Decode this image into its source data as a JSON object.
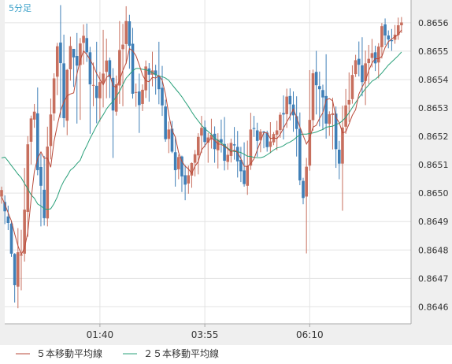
{
  "chart_data": {
    "type": "candlestick",
    "title": "5分足",
    "y_ticks": [
      "0.8656",
      "0.8655",
      "0.8654",
      "0.8653",
      "0.8652",
      "0.8651",
      "0.8650",
      "0.8649",
      "0.8648",
      "0.8647",
      "0.8646"
    ],
    "x_ticks": [
      "01:40",
      "03:55",
      "06:10"
    ],
    "ylim": [
      0.86454,
      0.86568
    ],
    "grid": true,
    "legend_position": "bottom",
    "series": [
      {
        "name": "５本移動平均線",
        "color": "#b94a3a"
      },
      {
        "name": "２５本移動平均線",
        "color": "#2aa07a"
      }
    ],
    "up_color": "#c76f5e",
    "down_color": "#3f7fb7",
    "candles": [
      [
        0.864988,
        0.865011,
        0.864963,
        0.865023
      ],
      [
        0.864969,
        0.864936,
        0.864891,
        0.864992
      ],
      [
        0.864918,
        0.864895,
        0.86487,
        0.864956
      ],
      [
        0.864893,
        0.864787,
        0.864776,
        0.864903
      ],
      [
        0.864786,
        0.864676,
        0.864615,
        0.864789
      ],
      [
        0.864671,
        0.864792,
        0.864595,
        0.864877
      ],
      [
        0.86478,
        0.864784,
        0.864658,
        0.864871
      ],
      [
        0.864787,
        0.864942,
        0.864759,
        0.865089
      ],
      [
        0.864934,
        0.865172,
        0.864846,
        0.865201
      ],
      [
        0.865181,
        0.865263,
        0.865101,
        0.865273
      ],
      [
        0.865259,
        0.865287,
        0.86523,
        0.865314
      ],
      [
        0.865281,
        0.865081,
        0.865063,
        0.865372
      ],
      [
        0.865092,
        0.865026,
        0.864883,
        0.865138
      ],
      [
        0.865012,
        0.864912,
        0.864886,
        0.865131
      ],
      [
        0.864911,
        0.865164,
        0.864883,
        0.865234
      ],
      [
        0.865166,
        0.865277,
        0.865119,
        0.865333
      ],
      [
        0.865281,
        0.865404,
        0.865255,
        0.865422
      ],
      [
        0.86541,
        0.865517,
        0.865345,
        0.865529
      ],
      [
        0.86553,
        0.865458,
        0.865265,
        0.865662
      ],
      [
        0.865457,
        0.865264,
        0.865232,
        0.865558
      ],
      [
        0.865255,
        0.865434,
        0.865204,
        0.865437
      ],
      [
        0.865436,
        0.865518,
        0.865396,
        0.865551
      ],
      [
        0.865508,
        0.865478,
        0.865374,
        0.865504
      ],
      [
        0.865483,
        0.865449,
        0.865245,
        0.865564
      ],
      [
        0.865451,
        0.865527,
        0.865258,
        0.865546
      ],
      [
        0.865529,
        0.865554,
        0.865453,
        0.865594
      ],
      [
        0.865546,
        0.865496,
        0.865462,
        0.865597
      ],
      [
        0.865496,
        0.865383,
        0.865209,
        0.865515
      ],
      [
        0.865381,
        0.865381,
        0.865306,
        0.86546
      ],
      [
        0.865378,
        0.865335,
        0.865246,
        0.865533
      ],
      [
        0.865334,
        0.865391,
        0.865252,
        0.865427
      ],
      [
        0.865388,
        0.865421,
        0.865302,
        0.865575
      ],
      [
        0.865427,
        0.865467,
        0.865334,
        0.865544
      ],
      [
        0.865468,
        0.865409,
        0.865335,
        0.865477
      ],
      [
        0.865406,
        0.865291,
        0.865124,
        0.86544
      ],
      [
        0.865287,
        0.865383,
        0.865273,
        0.865414
      ],
      [
        0.865379,
        0.865504,
        0.865314,
        0.865606
      ],
      [
        0.865507,
        0.865523,
        0.865306,
        0.865596
      ],
      [
        0.865525,
        0.865606,
        0.865455,
        0.865658
      ],
      [
        0.865605,
        0.865519,
        0.865438,
        0.865628
      ],
      [
        0.865526,
        0.86535,
        0.865333,
        0.865582
      ],
      [
        0.865355,
        0.865356,
        0.865304,
        0.865386
      ],
      [
        0.865358,
        0.86531,
        0.865212,
        0.865421
      ],
      [
        0.865314,
        0.865364,
        0.865289,
        0.865383
      ],
      [
        0.865362,
        0.865446,
        0.865335,
        0.865467
      ],
      [
        0.865439,
        0.865417,
        0.865322,
        0.865458
      ],
      [
        0.865417,
        0.865432,
        0.865376,
        0.865498
      ],
      [
        0.865432,
        0.865416,
        0.865347,
        0.865452
      ],
      [
        0.865411,
        0.865366,
        0.865313,
        0.865533
      ],
      [
        0.865371,
        0.865309,
        0.865272,
        0.865448
      ],
      [
        0.865305,
        0.86519,
        0.865181,
        0.865329
      ],
      [
        0.865191,
        0.865224,
        0.865141,
        0.865252
      ],
      [
        0.865227,
        0.865146,
        0.865141,
        0.865254
      ],
      [
        0.865144,
        0.865081,
        0.865023,
        0.865197
      ],
      [
        0.865084,
        0.865127,
        0.865049,
        0.865136
      ],
      [
        0.865129,
        0.865059,
        0.865004,
        0.865132
      ],
      [
        0.865063,
        0.86503,
        0.864975,
        0.865099
      ],
      [
        0.865034,
        0.865063,
        0.864998,
        0.865097
      ],
      [
        0.865062,
        0.865106,
        0.865019,
        0.865108
      ],
      [
        0.865107,
        0.865137,
        0.865059,
        0.865152
      ],
      [
        0.865133,
        0.865198,
        0.865066,
        0.865211
      ],
      [
        0.865203,
        0.86523,
        0.865141,
        0.865272
      ],
      [
        0.865232,
        0.86518,
        0.865162,
        0.865256
      ],
      [
        0.865178,
        0.865196,
        0.865107,
        0.865212
      ],
      [
        0.865192,
        0.865206,
        0.865157,
        0.865262
      ],
      [
        0.865209,
        0.865155,
        0.865107,
        0.865235
      ],
      [
        0.865151,
        0.865188,
        0.865087,
        0.865211
      ],
      [
        0.86519,
        0.865178,
        0.865143,
        0.865259
      ],
      [
        0.865173,
        0.865114,
        0.86508,
        0.865268
      ],
      [
        0.86511,
        0.865135,
        0.865082,
        0.865175
      ],
      [
        0.865131,
        0.865177,
        0.865108,
        0.865192
      ],
      [
        0.865172,
        0.865168,
        0.865118,
        0.865233
      ],
      [
        0.865163,
        0.865112,
        0.865055,
        0.865219
      ],
      [
        0.865117,
        0.865077,
        0.865039,
        0.865163
      ],
      [
        0.86508,
        0.865032,
        0.865023,
        0.865179
      ],
      [
        0.865026,
        0.865095,
        0.864994,
        0.865185
      ],
      [
        0.865097,
        0.865224,
        0.865082,
        0.865283
      ],
      [
        0.865229,
        0.865226,
        0.865198,
        0.865272
      ],
      [
        0.865221,
        0.865184,
        0.865128,
        0.865248
      ],
      [
        0.865187,
        0.865217,
        0.865144,
        0.865225
      ],
      [
        0.865217,
        0.865213,
        0.865158,
        0.865219
      ],
      [
        0.865213,
        0.865162,
        0.865146,
        0.86522
      ],
      [
        0.865163,
        0.865182,
        0.865141,
        0.86525
      ],
      [
        0.865179,
        0.865208,
        0.865169,
        0.865215
      ],
      [
        0.865206,
        0.865221,
        0.865151,
        0.865255
      ],
      [
        0.865222,
        0.865276,
        0.865195,
        0.865285
      ],
      [
        0.865282,
        0.865277,
        0.865189,
        0.865344
      ],
      [
        0.865278,
        0.86534,
        0.86523,
        0.865368
      ],
      [
        0.865342,
        0.865313,
        0.865256,
        0.865369
      ],
      [
        0.865312,
        0.865274,
        0.865216,
        0.865358
      ],
      [
        0.865271,
        0.865226,
        0.865129,
        0.865341
      ],
      [
        0.865226,
        0.865045,
        0.865028,
        0.865284
      ],
      [
        0.865043,
        0.864983,
        0.864961,
        0.865054
      ],
      [
        0.864988,
        0.865093,
        0.864788,
        0.865124
      ],
      [
        0.865097,
        0.865258,
        0.865079,
        0.865433
      ],
      [
        0.865257,
        0.865422,
        0.86522,
        0.865435
      ],
      [
        0.865427,
        0.86538,
        0.865277,
        0.865501
      ],
      [
        0.865377,
        0.865366,
        0.865235,
        0.865428
      ],
      [
        0.865363,
        0.865337,
        0.865222,
        0.865382
      ],
      [
        0.865342,
        0.865245,
        0.865192,
        0.865489
      ],
      [
        0.865244,
        0.865278,
        0.865202,
        0.865288
      ],
      [
        0.865275,
        0.865281,
        0.865154,
        0.865336
      ],
      [
        0.86528,
        0.865155,
        0.865089,
        0.865305
      ],
      [
        0.865153,
        0.865104,
        0.865049,
        0.865184
      ],
      [
        0.865104,
        0.865231,
        0.864938,
        0.865308
      ],
      [
        0.865234,
        0.865309,
        0.865209,
        0.865367
      ],
      [
        0.865312,
        0.865328,
        0.865251,
        0.865425
      ],
      [
        0.865331,
        0.865416,
        0.865315,
        0.86545
      ],
      [
        0.865419,
        0.865468,
        0.865409,
        0.865487
      ],
      [
        0.865473,
        0.865452,
        0.865411,
        0.865534
      ],
      [
        0.86545,
        0.865391,
        0.865341,
        0.865549
      ],
      [
        0.865395,
        0.865457,
        0.86531,
        0.865502
      ],
      [
        0.865458,
        0.865473,
        0.865384,
        0.865522
      ],
      [
        0.865476,
        0.865493,
        0.865443,
        0.865543
      ],
      [
        0.865496,
        0.865457,
        0.86543,
        0.865519
      ],
      [
        0.86546,
        0.865516,
        0.865404,
        0.865528
      ],
      [
        0.865514,
        0.865588,
        0.865474,
        0.865599
      ],
      [
        0.865594,
        0.865555,
        0.865521,
        0.865615
      ],
      [
        0.865555,
        0.865541,
        0.86551,
        0.865573
      ],
      [
        0.865539,
        0.865535,
        0.865501,
        0.865578
      ],
      [
        0.86554,
        0.865558,
        0.865526,
        0.865592
      ],
      [
        0.865557,
        0.865591,
        0.86554,
        0.865618
      ],
      [
        0.865591,
        0.865601,
        0.865564,
        0.86562
      ]
    ],
    "ma5": [
      0.864987,
      0.864961,
      0.864931,
      0.864902,
      0.864856,
      0.864815,
      0.864784,
      0.864806,
      0.864862,
      0.864978,
      0.865076,
      0.865122,
      0.865145,
      0.865123,
      0.865123,
      0.865091,
      0.865182,
      0.865239,
      0.865289,
      0.865322,
      0.865343,
      0.865349,
      0.865353,
      0.865419,
      0.865467,
      0.865501,
      0.865488,
      0.86547,
      0.865449,
      0.865421,
      0.865401,
      0.865381,
      0.865407,
      0.865417,
      0.865378,
      0.865373,
      0.865398,
      0.865432,
      0.865458,
      0.865509,
      0.865501,
      0.865484,
      0.865452,
      0.865416,
      0.865396,
      0.865392,
      0.865408,
      0.865405,
      0.865414,
      0.865397,
      0.865348,
      0.865277,
      0.865221,
      0.865198,
      0.865143,
      0.865112,
      0.865095,
      0.865085,
      0.865069,
      0.865095,
      0.865111,
      0.865152,
      0.865167,
      0.865182,
      0.865193,
      0.865186,
      0.865173,
      0.865172,
      0.865164,
      0.865156,
      0.865145,
      0.865152,
      0.865143,
      0.865121,
      0.865095,
      0.865094,
      0.865104,
      0.865121,
      0.865152,
      0.865182,
      0.865214,
      0.865212,
      0.865192,
      0.865195,
      0.865192,
      0.865207,
      0.865229,
      0.865251,
      0.865271,
      0.865296,
      0.865267,
      0.865233,
      0.865203,
      0.865173,
      0.865193,
      0.865232,
      0.865239,
      0.865263,
      0.865283,
      0.865328,
      0.865333,
      0.865325,
      0.865267,
      0.865248,
      0.865212,
      0.865216,
      0.865244,
      0.865274,
      0.865294,
      0.865349,
      0.865373,
      0.865396,
      0.865432,
      0.865458,
      0.865474,
      0.865473,
      0.865481,
      0.865513,
      0.865533,
      0.865543,
      0.865551,
      0.865557,
      0.865575
    ],
    "ma25": [
      0.865124,
      0.865127,
      0.865113,
      0.865097,
      0.865082,
      0.865067,
      0.865054,
      0.865034,
      0.865015,
      0.864994,
      0.864982,
      0.864962,
      0.864955,
      0.864945,
      0.864943,
      0.864945,
      0.864963,
      0.864987,
      0.865019,
      0.865043,
      0.865061,
      0.865081,
      0.86509,
      0.865104,
      0.865116,
      0.865145,
      0.865167,
      0.865193,
      0.865215,
      0.865237,
      0.865258,
      0.865276,
      0.865296,
      0.865311,
      0.865323,
      0.865339,
      0.865359,
      0.865382,
      0.865405,
      0.865418,
      0.865431,
      0.865439,
      0.865439,
      0.865436,
      0.865434,
      0.865431,
      0.865424,
      0.865418,
      0.865412,
      0.86541,
      0.865405,
      0.865397,
      0.865382,
      0.865368,
      0.865354,
      0.865339,
      0.865322,
      0.865305,
      0.865286,
      0.865269,
      0.865254,
      0.865239,
      0.865227,
      0.865217,
      0.865207,
      0.865194,
      0.865186,
      0.865177,
      0.865168,
      0.865158,
      0.865151,
      0.865146,
      0.865146,
      0.865143,
      0.865137,
      0.86513,
      0.865129,
      0.865126,
      0.865125,
      0.865125,
      0.865128,
      0.865135,
      0.865143,
      0.865152,
      0.865159,
      0.865162,
      0.865167,
      0.865175,
      0.86518,
      0.865187,
      0.865197,
      0.865205,
      0.865208,
      0.865208,
      0.86521,
      0.865212,
      0.865215,
      0.86522,
      0.865224,
      0.865232,
      0.865234,
      0.865236,
      0.865242,
      0.865246,
      0.865255,
      0.865267,
      0.865283,
      0.865301,
      0.865319,
      0.865336,
      0.865352,
      0.865368,
      0.865381,
      0.865394,
      0.865401,
      0.865411,
      0.865423,
      0.865437,
      0.865451,
      0.865462,
      0.865473,
      0.865484,
      0.865497
    ]
  }
}
